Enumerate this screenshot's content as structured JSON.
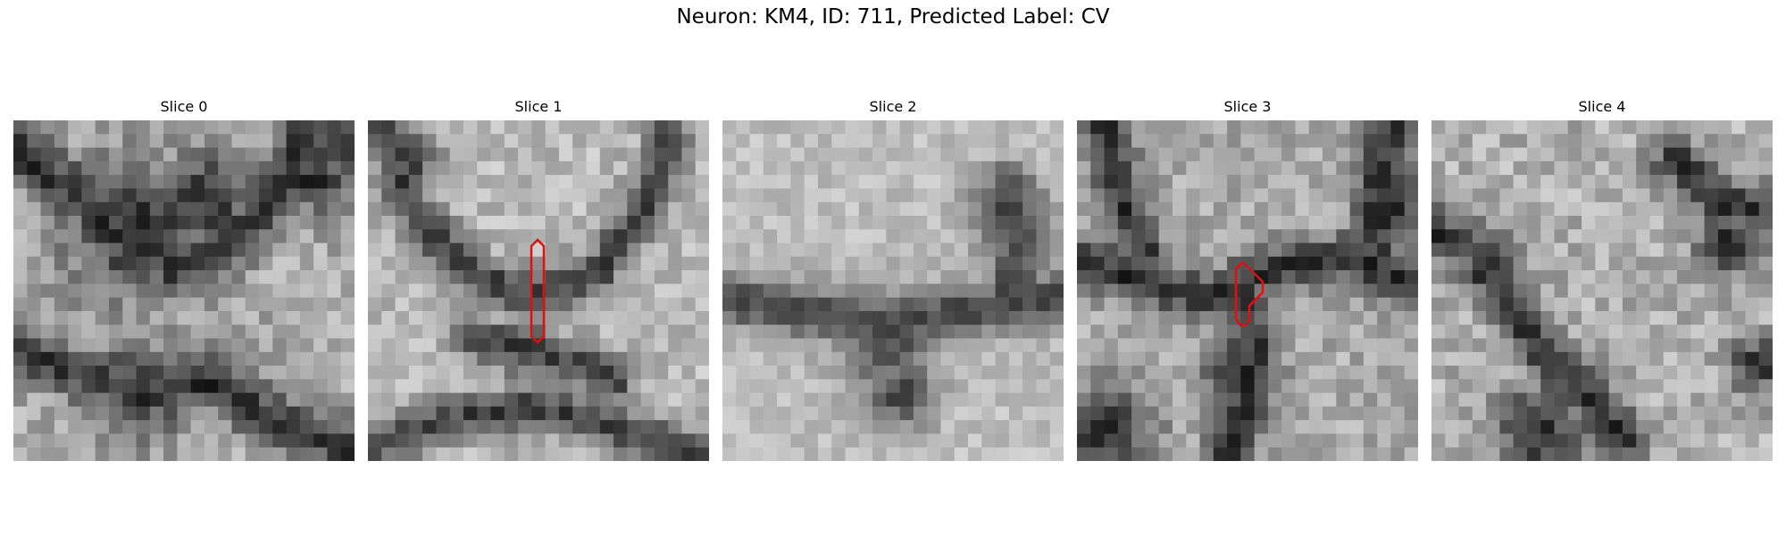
{
  "figure": {
    "title": "Neuron: KM4, ID: 711, Predicted Label: CV",
    "contour_color": "#e01010"
  },
  "slices": [
    {
      "label": "Slice 0"
    },
    {
      "label": "Slice 1"
    },
    {
      "label": "Slice 2"
    },
    {
      "label": "Slice 3"
    },
    {
      "label": "Slice 4"
    }
  ]
}
